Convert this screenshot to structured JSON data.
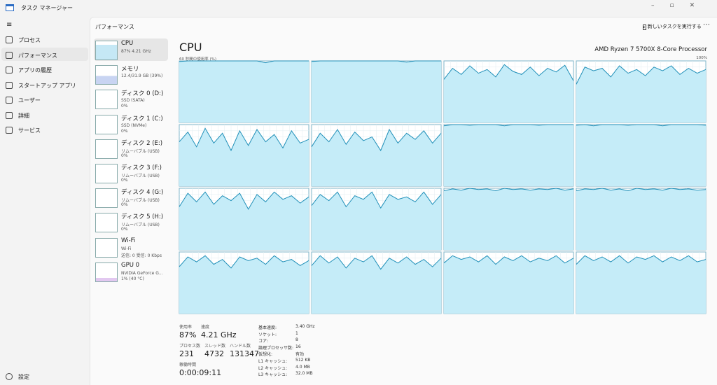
{
  "window": {
    "title": "タスク マネージャー"
  },
  "nav": [
    "プロセス",
    "パフォーマンス",
    "アプリの履歴",
    "スタートアップ アプリ",
    "ユーザー",
    "詳細",
    "サービス"
  ],
  "settings": "設定",
  "header": {
    "title": "パフォーマンス",
    "run_task": "新しいタスクを実行する"
  },
  "devices": [
    {
      "name": "CPU",
      "lines": [
        "87% 4.21 GHz"
      ]
    },
    {
      "name": "メモリ",
      "lines": [
        "12.4/31.9 GB (39%)"
      ]
    },
    {
      "name": "ディスク 0 (D:)",
      "lines": [
        "SSD (SATA)",
        "0%"
      ]
    },
    {
      "name": "ディスク 1 (C:)",
      "lines": [
        "SSD (NVMe)",
        "0%"
      ]
    },
    {
      "name": "ディスク 2 (E:)",
      "lines": [
        "リムーバブル (USB)",
        "0%"
      ]
    },
    {
      "name": "ディスク 3 (F:)",
      "lines": [
        "リムーバブル (USB)",
        "0%"
      ]
    },
    {
      "name": "ディスク 4 (G:)",
      "lines": [
        "リムーバブル (USB)",
        "0%"
      ]
    },
    {
      "name": "ディスク 5 (H:)",
      "lines": [
        "リムーバブル (USB)",
        "0%"
      ]
    },
    {
      "name": "Wi-Fi",
      "lines": [
        "Wi-Fi",
        "送信: 0 受信: 0 Kbps"
      ]
    },
    {
      "name": "GPU 0",
      "lines": [
        "NVIDIA GeForce G...",
        "1% (40 °C)"
      ]
    }
  ],
  "main": {
    "title": "CPU",
    "processor": "AMD Ryzen 7 5700X 8-Core Processor",
    "graph_label": "60 秒間の使用率 (%)",
    "graph_max": "100%"
  },
  "graphs": {
    "ylim": [
      0,
      100
    ],
    "cores": [
      [
        99,
        100,
        100,
        100,
        100,
        100,
        100,
        100,
        100,
        100,
        97,
        100,
        100,
        100,
        100,
        100
      ],
      [
        99,
        100,
        100,
        100,
        100,
        100,
        100,
        100,
        100,
        100,
        100,
        98,
        100,
        100,
        100,
        100
      ],
      [
        70,
        88,
        78,
        92,
        80,
        86,
        74,
        94,
        83,
        78,
        90,
        76,
        88,
        82,
        93,
        68
      ],
      [
        62,
        90,
        84,
        88,
        74,
        92,
        80,
        86,
        76,
        90,
        84,
        92,
        78,
        88,
        80,
        86
      ],
      [
        72,
        88,
        64,
        94,
        70,
        86,
        58,
        90,
        66,
        92,
        72,
        84,
        62,
        90,
        70,
        76
      ],
      [
        64,
        86,
        72,
        92,
        68,
        88,
        74,
        80,
        58,
        92,
        70,
        86,
        76,
        90,
        70,
        86
      ],
      [
        98,
        100,
        100,
        99,
        100,
        100,
        100,
        98,
        100,
        100,
        100,
        99,
        100,
        100,
        100,
        100
      ],
      [
        99,
        100,
        98,
        100,
        100,
        100,
        99,
        100,
        100,
        100,
        98,
        100,
        100,
        100,
        100,
        99
      ],
      [
        70,
        92,
        78,
        94,
        74,
        88,
        80,
        92,
        66,
        90,
        78,
        94,
        82,
        88,
        76,
        86
      ],
      [
        72,
        90,
        80,
        94,
        70,
        88,
        82,
        94,
        68,
        90,
        82,
        86,
        78,
        94,
        74,
        90
      ],
      [
        96,
        99,
        97,
        100,
        98,
        99,
        96,
        100,
        98,
        99,
        97,
        99,
        98,
        100,
        97,
        99
      ],
      [
        96,
        99,
        98,
        100,
        97,
        99,
        96,
        100,
        98,
        99,
        97,
        100,
        98,
        99,
        97,
        98
      ],
      [
        76,
        92,
        84,
        94,
        80,
        88,
        74,
        92,
        86,
        90,
        80,
        94,
        84,
        88,
        78,
        86
      ],
      [
        78,
        94,
        82,
        92,
        74,
        90,
        84,
        94,
        72,
        90,
        82,
        92,
        80,
        88,
        76,
        90
      ],
      [
        82,
        94,
        88,
        92,
        84,
        94,
        80,
        92,
        86,
        94,
        84,
        90,
        86,
        94,
        82,
        90
      ],
      [
        80,
        94,
        86,
        92,
        84,
        94,
        82,
        92,
        88,
        94,
        84,
        92,
        86,
        94,
        84,
        88
      ]
    ]
  },
  "stats": {
    "usage": {
      "label": "使用率",
      "value": "87%"
    },
    "speed": {
      "label": "速度",
      "value": "4.21 GHz"
    },
    "processes": {
      "label": "プロセス数",
      "value": "231"
    },
    "threads": {
      "label": "スレッド数",
      "value": "4732"
    },
    "handles": {
      "label": "ハンドル数",
      "value": "131347"
    },
    "uptime": {
      "label": "稼働時間",
      "value": "0:00:09:11"
    }
  },
  "specs": [
    [
      "基本速度:",
      "3.40 GHz"
    ],
    [
      "ソケット:",
      "1"
    ],
    [
      "コア:",
      "8"
    ],
    [
      "論理プロセッサ数:",
      "16"
    ],
    [
      "仮想化:",
      "有効"
    ],
    [
      "L1 キャッシュ:",
      "512 KB"
    ],
    [
      "L2 キャッシュ:",
      "4.0 MB"
    ],
    [
      "L3 キャッシュ:",
      "32.0 MB"
    ]
  ]
}
